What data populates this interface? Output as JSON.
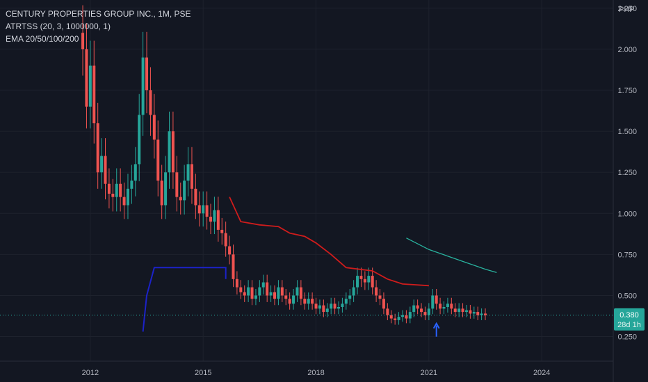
{
  "legend": {
    "title": "CENTURY PROPERTIES GROUP INC., 1M, PSE",
    "indicator1": "ATRTSS (20, 3, 1000000, 1)",
    "indicator2": "EMA 20/50/100/200"
  },
  "currency": "PHP",
  "last_price": {
    "value": "0.380",
    "countdown": "28d 1h"
  },
  "colors": {
    "background": "#131722",
    "grid": "#1e222d",
    "up": "#26a69a",
    "down": "#ef5350",
    "atr_stop": "#d01c1c",
    "atr_support": "#1c22c9",
    "ema": "#29b39f",
    "badge": "#26a69a",
    "arrow": "#2962ff"
  },
  "chart_data": {
    "type": "candlestick",
    "interval": "1M",
    "y_ticks": [
      "0.250",
      "0.500",
      "0.750",
      "1.000",
      "1.250",
      "1.500",
      "1.750",
      "2.000",
      "2.250"
    ],
    "y_range": [
      0.1,
      2.3
    ],
    "x_ticks": [
      "2012",
      "2015",
      "2018",
      "2021",
      "2024"
    ],
    "x_range": [
      2009.6,
      2025.9
    ],
    "close_series": [
      [
        2011.8,
        2.0
      ],
      [
        2011.9,
        1.65
      ],
      [
        2012.0,
        1.9
      ],
      [
        2012.1,
        1.55
      ],
      [
        2012.2,
        1.25
      ],
      [
        2012.3,
        1.35
      ],
      [
        2012.4,
        1.18
      ],
      [
        2012.5,
        1.12
      ],
      [
        2012.6,
        1.1
      ],
      [
        2012.7,
        1.18
      ],
      [
        2012.8,
        1.1
      ],
      [
        2012.9,
        1.05
      ],
      [
        2013.0,
        1.15
      ],
      [
        2013.1,
        1.2
      ],
      [
        2013.2,
        1.3
      ],
      [
        2013.3,
        1.6
      ],
      [
        2013.4,
        1.95
      ],
      [
        2013.5,
        1.75
      ],
      [
        2013.6,
        1.6
      ],
      [
        2013.7,
        1.45
      ],
      [
        2013.8,
        1.2
      ],
      [
        2013.9,
        1.05
      ],
      [
        2014.0,
        1.25
      ],
      [
        2014.1,
        1.5
      ],
      [
        2014.2,
        1.25
      ],
      [
        2014.3,
        1.1
      ],
      [
        2014.4,
        1.08
      ],
      [
        2014.5,
        1.2
      ],
      [
        2014.6,
        1.3
      ],
      [
        2014.7,
        1.15
      ],
      [
        2014.8,
        1.05
      ],
      [
        2014.9,
        1.0
      ],
      [
        2015.0,
        1.05
      ],
      [
        2015.1,
        0.98
      ],
      [
        2015.2,
        0.95
      ],
      [
        2015.3,
        1.02
      ],
      [
        2015.4,
        0.9
      ],
      [
        2015.5,
        0.88
      ],
      [
        2015.6,
        0.8
      ],
      [
        2015.7,
        0.75
      ],
      [
        2015.8,
        0.6
      ],
      [
        2015.9,
        0.55
      ],
      [
        2016.0,
        0.52
      ],
      [
        2016.1,
        0.5
      ],
      [
        2016.2,
        0.55
      ],
      [
        2016.3,
        0.48
      ],
      [
        2016.4,
        0.5
      ],
      [
        2016.5,
        0.55
      ],
      [
        2016.6,
        0.58
      ],
      [
        2016.7,
        0.5
      ],
      [
        2016.8,
        0.52
      ],
      [
        2016.9,
        0.48
      ],
      [
        2017.0,
        0.55
      ],
      [
        2017.1,
        0.5
      ],
      [
        2017.2,
        0.48
      ],
      [
        2017.3,
        0.45
      ],
      [
        2017.4,
        0.5
      ],
      [
        2017.5,
        0.55
      ],
      [
        2017.6,
        0.48
      ],
      [
        2017.7,
        0.45
      ],
      [
        2017.8,
        0.48
      ],
      [
        2017.9,
        0.45
      ],
      [
        2018.0,
        0.42
      ],
      [
        2018.1,
        0.44
      ],
      [
        2018.2,
        0.4
      ],
      [
        2018.3,
        0.42
      ],
      [
        2018.4,
        0.45
      ],
      [
        2018.5,
        0.42
      ],
      [
        2018.6,
        0.43
      ],
      [
        2018.7,
        0.45
      ],
      [
        2018.8,
        0.48
      ],
      [
        2018.9,
        0.5
      ],
      [
        2019.0,
        0.55
      ],
      [
        2019.1,
        0.62
      ],
      [
        2019.2,
        0.6
      ],
      [
        2019.3,
        0.58
      ],
      [
        2019.4,
        0.62
      ],
      [
        2019.5,
        0.55
      ],
      [
        2019.6,
        0.5
      ],
      [
        2019.7,
        0.48
      ],
      [
        2019.8,
        0.42
      ],
      [
        2019.9,
        0.38
      ],
      [
        2020.0,
        0.36
      ],
      [
        2020.1,
        0.35
      ],
      [
        2020.2,
        0.37
      ],
      [
        2020.3,
        0.38
      ],
      [
        2020.4,
        0.36
      ],
      [
        2020.5,
        0.4
      ],
      [
        2020.6,
        0.44
      ],
      [
        2020.7,
        0.42
      ],
      [
        2020.8,
        0.4
      ],
      [
        2020.9,
        0.38
      ],
      [
        2021.0,
        0.42
      ],
      [
        2021.1,
        0.5
      ],
      [
        2021.2,
        0.45
      ],
      [
        2021.3,
        0.42
      ],
      [
        2021.4,
        0.43
      ],
      [
        2021.5,
        0.45
      ],
      [
        2021.6,
        0.42
      ],
      [
        2021.7,
        0.4
      ],
      [
        2021.8,
        0.42
      ],
      [
        2021.9,
        0.4
      ],
      [
        2022.0,
        0.41
      ],
      [
        2022.1,
        0.39
      ],
      [
        2022.2,
        0.4
      ],
      [
        2022.3,
        0.38
      ],
      [
        2022.4,
        0.39
      ],
      [
        2022.5,
        0.38
      ]
    ],
    "atr_stop_line": [
      [
        2015.7,
        1.1
      ],
      [
        2016.0,
        0.95
      ],
      [
        2016.5,
        0.93
      ],
      [
        2017.0,
        0.92
      ],
      [
        2017.3,
        0.88
      ],
      [
        2017.7,
        0.86
      ],
      [
        2018.0,
        0.82
      ],
      [
        2018.4,
        0.75
      ],
      [
        2018.8,
        0.67
      ],
      [
        2019.5,
        0.65
      ],
      [
        2019.9,
        0.6
      ],
      [
        2020.3,
        0.57
      ],
      [
        2021.0,
        0.56
      ]
    ],
    "atr_support_line": [
      [
        2013.4,
        0.28
      ],
      [
        2013.5,
        0.5
      ],
      [
        2013.7,
        0.67
      ],
      [
        2015.6,
        0.67
      ],
      [
        2015.6,
        0.6
      ]
    ],
    "ema_line": [
      [
        2020.4,
        0.85
      ],
      [
        2021.0,
        0.78
      ],
      [
        2021.5,
        0.74
      ],
      [
        2022.0,
        0.7
      ],
      [
        2022.5,
        0.66
      ],
      [
        2022.8,
        0.64
      ]
    ],
    "arrow_marker": {
      "x": 2021.2,
      "y": 0.3,
      "direction": "up"
    }
  }
}
